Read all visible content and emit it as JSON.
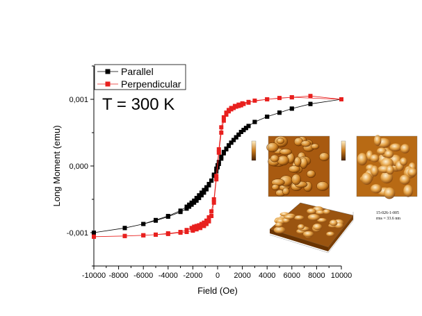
{
  "chart_data": {
    "type": "scatter",
    "title": "",
    "xlabel": "Field (Oe)",
    "ylabel": "Long Moment (emu)",
    "xlim": [
      -10000,
      10000
    ],
    "ylim": [
      -0.0015,
      0.0015
    ],
    "xticks": [
      -10000,
      -8000,
      -6000,
      -4000,
      -2000,
      0,
      2000,
      4000,
      6000,
      8000,
      10000
    ],
    "xtick_labels": [
      "-10000",
      "-8000",
      "-6000",
      "-4000",
      "-2000",
      "0",
      "2000",
      "4000",
      "6000",
      "8000",
      "10000"
    ],
    "yticks": [
      -0.001,
      0.0,
      0.001
    ],
    "ytick_labels": [
      "-0,001",
      "0,000",
      "0,001"
    ],
    "legend_position": "top-left",
    "annotation": "T = 300 K",
    "series": [
      {
        "name": "Parallel",
        "color": "#000000",
        "marker": "square",
        "x": [
          -10000,
          -7500,
          -6000,
          -5000,
          -4000,
          -3000,
          -2500,
          -2300,
          -2100,
          -1900,
          -1700,
          -1500,
          -1300,
          -1100,
          -900,
          -700,
          -500,
          -300,
          -100,
          0,
          100,
          300,
          500,
          700,
          900,
          1100,
          1300,
          1500,
          1700,
          1900,
          2100,
          2300,
          2500,
          3000,
          4000,
          5000,
          6000,
          7500,
          10000,
          7500,
          6000,
          5000,
          4000,
          3000,
          2500,
          2300,
          2100,
          1900,
          1700,
          1500,
          1300,
          1100,
          900,
          700,
          500,
          300,
          100,
          0,
          -100,
          -300,
          -500,
          -700,
          -900,
          -1100,
          -1300,
          -1500,
          -1700,
          -1900,
          -2100,
          -2300,
          -2500,
          -3000,
          -4000,
          -5000,
          -6000,
          -7500,
          -10000
        ],
        "y": [
          -0.001,
          -0.00093,
          -0.00087,
          -0.00082,
          -0.00076,
          -0.00069,
          -0.00064,
          -0.00061,
          -0.00058,
          -0.00055,
          -0.00052,
          -0.00048,
          -0.00044,
          -0.0004,
          -0.00035,
          -0.00029,
          -0.00022,
          -0.00013,
          -4e-05,
          1e-05,
          6e-05,
          0.00014,
          0.00021,
          0.00026,
          0.00031,
          0.00035,
          0.00039,
          0.00043,
          0.00047,
          0.00051,
          0.00054,
          0.00057,
          0.0006,
          0.00066,
          0.00074,
          0.0008,
          0.00086,
          0.00093,
          0.001,
          0.00093,
          0.00086,
          0.0008,
          0.00074,
          0.00066,
          0.0006,
          0.00057,
          0.00054,
          0.00051,
          0.00047,
          0.00043,
          0.00039,
          0.00035,
          0.0003,
          0.00025,
          0.00019,
          0.00011,
          3e-05,
          -2e-05,
          -8e-05,
          -0.00015,
          -0.00022,
          -0.00027,
          -0.00032,
          -0.00036,
          -0.0004,
          -0.00044,
          -0.00048,
          -0.00052,
          -0.00055,
          -0.00058,
          -0.00061,
          -0.00067,
          -0.00075,
          -0.00081,
          -0.00087,
          -0.00093,
          -0.001
        ]
      },
      {
        "name": "Perpendicular",
        "color": "#e8201e",
        "marker": "square",
        "x": [
          -10000,
          -7500,
          -6000,
          -5000,
          -4000,
          -3000,
          -2500,
          -2000,
          -1700,
          -1400,
          -1100,
          -900,
          -700,
          -500,
          -300,
          -100,
          100,
          300,
          500,
          700,
          900,
          1100,
          1300,
          1500,
          1700,
          1900,
          2100,
          2500,
          3000,
          4000,
          5000,
          6000,
          7500,
          10000,
          6000,
          4000,
          2500,
          2000,
          1700,
          1400,
          1100,
          900,
          700,
          500,
          300,
          100,
          -100,
          -300,
          -500,
          -700,
          -900,
          -1100,
          -1300,
          -1500,
          -1700,
          -1900,
          -2100,
          -2500,
          -3000,
          -4000,
          -5000,
          -6000,
          -7500,
          -10000
        ],
        "y": [
          -0.00106,
          -0.00105,
          -0.00104,
          -0.00103,
          -0.00102,
          -0.001,
          -0.00099,
          -0.00097,
          -0.00095,
          -0.00093,
          -0.0009,
          -0.00087,
          -0.00083,
          -0.00075,
          -0.00055,
          -0.0002,
          0.0002,
          0.0005,
          0.00068,
          0.00077,
          0.00082,
          0.00085,
          0.00087,
          0.00089,
          0.0009,
          0.00091,
          0.00093,
          0.00095,
          0.00098,
          0.001,
          0.00102,
          0.00103,
          0.00105,
          0.001,
          0.00103,
          0.001,
          0.00096,
          0.00094,
          0.00092,
          0.0009,
          0.00087,
          0.00084,
          0.0008,
          0.00073,
          0.00058,
          0.00025,
          -0.00015,
          -0.0005,
          -0.00068,
          -0.00077,
          -0.00082,
          -0.00085,
          -0.00087,
          -0.00089,
          -0.0009,
          -0.00091,
          -0.00093,
          -0.00096,
          -0.00099,
          -0.00101,
          -0.00103,
          -0.00104,
          -0.00105,
          -0.00106
        ]
      }
    ]
  },
  "insets": {
    "afm_caption_line1": "15-026-1-005",
    "afm_caption_line2": "rms = 33.6 nm",
    "colors": {
      "afm_dark": "#5a2a00",
      "afm_mid": "#c97a1c",
      "afm_light": "#ffe2a8",
      "afm_bright": "#fff6dc"
    }
  }
}
